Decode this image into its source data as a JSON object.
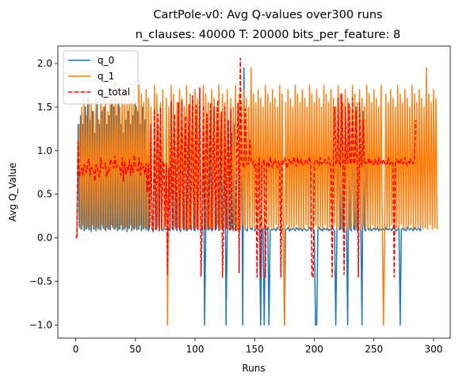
{
  "chart_data": {
    "type": "line",
    "title": "CartPole-v0: Avg Q-values over300 runs",
    "subtitle": "n_clauses: 40000 T: 20000 bits_per_feature: 8",
    "xlabel": "Runs",
    "ylabel": "Avg Q_Value",
    "xlim": [
      -15,
      314
    ],
    "ylim": [
      -1.15,
      2.2
    ],
    "xticks": [
      0,
      50,
      100,
      150,
      200,
      250,
      300
    ],
    "yticks": [
      -1.0,
      -0.5,
      0.0,
      0.5,
      1.0,
      1.5,
      2.0
    ],
    "ytick_labels": [
      "−1.0",
      "−0.5",
      "0.0",
      "0.5",
      "1.0",
      "1.5",
      "2.0"
    ],
    "grid": false,
    "legend_position": "top-left",
    "x": {
      "start": 0,
      "end": 299,
      "step": 1
    },
    "series": [
      {
        "name": "q_0",
        "color": "#1f77b4",
        "style": "solid",
        "values": [
          0.0,
          0.02,
          1.3,
          0.12,
          1.4,
          0.1,
          1.3,
          0.08,
          1.5,
          0.1,
          1.6,
          0.09,
          1.35,
          0.07,
          1.45,
          0.1,
          1.2,
          0.08,
          1.55,
          0.1,
          1.3,
          0.09,
          1.45,
          0.11,
          1.5,
          0.08,
          1.3,
          0.1,
          1.4,
          0.09,
          1.6,
          0.12,
          1.5,
          0.1,
          1.4,
          0.08,
          1.55,
          0.1,
          1.3,
          0.09,
          1.2,
          0.1,
          1.35,
          0.07,
          1.45,
          0.11,
          1.3,
          0.08,
          1.4,
          0.1,
          1.55,
          0.09,
          1.45,
          0.1,
          1.3,
          0.08,
          1.5,
          0.1,
          1.35,
          0.09,
          0.95,
          0.08,
          0.12,
          1.1,
          0.1,
          0.07,
          1.2,
          0.09,
          0.1,
          1.3,
          0.08,
          1.45,
          0.1,
          0.08,
          0.12,
          0.1,
          0.09,
          0.13,
          0.1,
          0.08,
          1.35,
          0.1,
          0.09,
          1.2,
          0.11,
          0.08,
          1.4,
          0.1,
          0.07,
          1.55,
          0.1,
          0.09,
          1.3,
          0.08,
          0.1,
          1.45,
          0.11,
          0.09,
          1.6,
          0.1,
          0.08,
          1.35,
          0.1,
          0.09,
          1.5,
          0.1,
          0.08,
          1.7,
          -1.0,
          0.1,
          1.3,
          0.09,
          0.1,
          1.45,
          0.08,
          0.1,
          1.55,
          0.09,
          0.11,
          1.3,
          0.08,
          0.1,
          1.4,
          0.1,
          0.09,
          1.5,
          -1.0,
          0.08,
          1.35,
          0.1,
          0.09,
          1.2,
          0.08,
          1.3,
          0.1,
          0.09,
          0.11,
          0.08,
          0.1,
          1.45,
          -1.0,
          1.95,
          0.1,
          0.09,
          0.08,
          1.4,
          0.1,
          0.11,
          0.09,
          1.55,
          0.08,
          0.1,
          0.12,
          0.09,
          0.1,
          -1.0,
          0.08,
          0.11,
          -1.0,
          0.1,
          0.09,
          0.12,
          -1.0,
          0.08,
          0.1,
          0.09,
          0.11,
          0.1,
          0.08,
          0.12,
          0.1,
          0.09,
          0.08,
          0.1,
          0.11,
          -1.0,
          0.09,
          0.1,
          0.12,
          0.08,
          0.1,
          0.09,
          0.11,
          0.1,
          0.08,
          0.12,
          0.1,
          0.09,
          0.11,
          0.1,
          0.08,
          0.12,
          0.1,
          0.09,
          0.08,
          0.1,
          0.12,
          0.09,
          0.11,
          0.1,
          0.08,
          -1.0,
          -1.0,
          0.1,
          0.12,
          0.09,
          0.1,
          0.08,
          0.11,
          0.1,
          0.09,
          0.12,
          0.08,
          0.1,
          0.09,
          0.11,
          0.1,
          0.08,
          -1.0,
          0.1,
          1.3,
          0.09,
          0.1,
          1.45,
          0.08,
          0.1,
          1.55,
          0.09,
          -1.0,
          1.3,
          0.1,
          0.08,
          1.4,
          0.1,
          0.09,
          1.5,
          0.08,
          0.1,
          1.35,
          0.09,
          -1.0,
          1.45,
          0.1,
          0.08,
          1.2,
          0.1,
          0.09,
          0.12,
          0.08,
          0.1,
          0.11,
          0.09,
          0.1,
          0.12,
          0.08,
          0.1,
          0.09,
          0.11,
          0.1,
          0.08,
          0.12,
          0.1,
          0.09,
          0.11,
          0.1,
          0.08,
          0.12,
          0.1,
          0.09,
          0.08,
          0.1,
          0.12,
          -1.0,
          0.1,
          0.11,
          0.09,
          0.1,
          0.08,
          0.12,
          0.1,
          0.09,
          0.11,
          0.1,
          0.08,
          0.12,
          0.1,
          0.09,
          0.11,
          0.1,
          0.08,
          1.35
        ]
      },
      {
        "name": "q_1",
        "color": "#ff7f0e",
        "style": "solid",
        "values": [
          0.0,
          0.02,
          0.9,
          1.3,
          0.1,
          1.5,
          0.15,
          1.6,
          0.1,
          1.4,
          0.12,
          1.7,
          0.1,
          1.55,
          0.15,
          1.45,
          0.1,
          1.6,
          0.12,
          1.35,
          0.1,
          1.75,
          0.15,
          1.5,
          0.1,
          1.65,
          0.12,
          1.45,
          0.1,
          1.7,
          0.15,
          1.55,
          0.1,
          1.8,
          0.12,
          1.6,
          0.1,
          1.5,
          0.15,
          1.75,
          0.1,
          1.65,
          0.12,
          1.55,
          0.1,
          1.7,
          0.15,
          1.6,
          0.1,
          1.8,
          0.12,
          1.5,
          0.1,
          1.75,
          0.15,
          1.65,
          0.1,
          1.55,
          0.12,
          1.7,
          0.1,
          1.6,
          0.15,
          1.5,
          0.1,
          0.12,
          1.75,
          0.1,
          1.65,
          0.15,
          0.1,
          1.55,
          0.12,
          1.7,
          0.1,
          0.15,
          1.6,
          -1.0,
          1.5,
          0.12,
          1.75,
          0.1,
          1.65,
          0.15,
          0.1,
          1.55,
          0.12,
          1.7,
          0.1,
          1.6,
          0.15,
          1.5,
          0.1,
          1.75,
          0.12,
          0.1,
          1.65,
          0.15,
          1.55,
          0.1,
          1.7,
          0.12,
          1.6,
          0.1,
          1.5,
          0.15,
          0.1,
          1.75,
          0.12,
          1.65,
          0.1,
          1.55,
          0.15,
          0.1,
          1.7,
          0.12,
          1.6,
          0.1,
          1.5,
          0.15,
          1.75,
          0.1,
          0.12,
          1.65,
          0.1,
          1.55,
          0.15,
          1.7,
          0.1,
          0.12,
          1.6,
          0.1,
          1.5,
          0.15,
          1.75,
          0.1,
          0.12,
          1.65,
          0.1,
          1.55,
          0.15,
          1.7,
          0.1,
          1.6,
          0.12,
          1.5,
          0.1,
          1.95,
          0.12,
          1.65,
          0.1,
          1.55,
          0.15,
          1.7,
          0.1,
          1.6,
          0.12,
          1.5,
          0.1,
          1.75,
          0.15,
          1.65,
          0.1,
          1.55,
          0.12,
          1.7,
          0.1,
          1.6,
          0.15,
          1.5,
          0.1,
          1.75,
          0.12,
          1.65,
          0.1,
          -1.0,
          1.55,
          0.15,
          1.7,
          0.1,
          1.6,
          0.12,
          1.5,
          0.1,
          1.75,
          0.15,
          1.65,
          0.1,
          1.55,
          0.12,
          1.7,
          0.1,
          1.6,
          0.15,
          1.5,
          0.1,
          1.75,
          0.12,
          1.65,
          0.1,
          1.55,
          0.15,
          1.7,
          0.1,
          1.6,
          0.12,
          1.5,
          0.1,
          1.75,
          0.15,
          1.65,
          0.1,
          1.55,
          0.12,
          1.7,
          0.1,
          1.6,
          0.15,
          1.5,
          0.1,
          1.75,
          0.12,
          1.65,
          0.1,
          1.55,
          0.15,
          1.7,
          0.1,
          1.6,
          0.12,
          1.5,
          0.1,
          1.75,
          0.15,
          1.65,
          0.1,
          1.55,
          0.12,
          1.7,
          0.1,
          1.6,
          0.15,
          1.5,
          0.1,
          1.75,
          0.12,
          1.65,
          0.1,
          1.55,
          0.15,
          1.7,
          0.1,
          1.6,
          0.12,
          1.5,
          0.1,
          1.75,
          0.15,
          -1.0,
          0.1,
          1.65,
          0.12,
          1.55,
          0.1,
          1.7,
          0.15,
          1.6,
          0.1,
          1.5,
          0.12,
          1.75,
          0.1,
          1.65,
          0.15,
          1.55,
          0.1,
          1.7,
          0.12,
          1.6,
          0.1,
          1.5,
          0.15,
          1.75,
          0.1,
          1.65,
          0.12,
          1.55,
          0.1,
          1.7,
          0.15,
          1.6,
          0.1,
          1.5,
          0.12,
          1.95,
          0.1,
          1.65,
          0.15,
          1.55,
          0.1,
          1.7,
          0.12,
          1.6,
          0.1
        ]
      },
      {
        "name": "q_total",
        "color": "#ff0000",
        "style": "dashed",
        "values": [
          0.0,
          0.01,
          1.1,
          0.7,
          0.75,
          0.8,
          0.72,
          0.84,
          0.8,
          0.75,
          0.86,
          0.9,
          0.72,
          0.81,
          0.8,
          0.77,
          0.65,
          0.84,
          0.83,
          0.72,
          0.7,
          0.92,
          0.8,
          0.8,
          0.8,
          0.86,
          0.71,
          0.77,
          0.75,
          0.9,
          0.87,
          0.83,
          0.8,
          0.94,
          0.81,
          0.84,
          0.82,
          0.8,
          0.72,
          0.92,
          0.65,
          0.87,
          0.73,
          0.81,
          0.77,
          0.9,
          0.72,
          0.84,
          0.75,
          0.95,
          0.83,
          0.79,
          0.77,
          0.92,
          0.72,
          0.86,
          0.8,
          0.82,
          0.73,
          0.85,
          0.52,
          0.84,
          0.13,
          1.3,
          0.1,
          0.09,
          1.48,
          0.1,
          0.88,
          1.42,
          0.08,
          1.5,
          0.11,
          0.87,
          0.87,
          0.13,
          0.85,
          -0.43,
          0.8,
          0.1,
          1.56,
          0.1,
          0.87,
          1.42,
          0.11,
          0.82,
          1.55,
          0.1,
          0.83,
          1.58,
          0.12,
          0.84,
          1.4,
          0.09,
          0.9,
          1.53,
          0.1,
          0.89,
          1.63,
          0.1,
          0.8,
          1.52,
          0.1,
          0.82,
          1.72,
          -0.44,
          0.12,
          1.52,
          0.09,
          0.92,
          1.42,
          0.13,
          0.85,
          1.55,
          0.1,
          0.83,
          1.5,
          0.09,
          0.82,
          1.58,
          0.12,
          0.84,
          1.45,
          -0.45,
          0.1,
          1.5,
          0.11,
          0.82,
          1.35,
          0.09,
          1.47,
          0.13,
          0.1,
          0.12,
          0.08,
          0.85,
          1.55,
          -0.4,
          2.06,
          0.9,
          0.85,
          0.8,
          1.48,
          0.85,
          0.85,
          0.85,
          1.12,
          0.88,
          0.85,
          0.88,
          0.8,
          0.85,
          -0.45,
          0.85,
          0.92,
          -0.46,
          0.85,
          0.87,
          0.9,
          -0.45,
          0.85,
          0.87,
          0.8,
          0.93,
          0.85,
          0.8,
          0.87,
          0.9,
          0.85,
          0.8,
          0.88,
          0.87,
          -0.45,
          0.88,
          0.85,
          0.92,
          0.87,
          0.8,
          0.85,
          0.9,
          0.85,
          0.87,
          0.85,
          0.93,
          0.85,
          0.82,
          0.92,
          0.85,
          0.85,
          0.9,
          0.85,
          0.83,
          0.85,
          0.9,
          0.87,
          0.85,
          0.93,
          0.85,
          -0.45,
          -0.45,
          0.85,
          0.88,
          0.9,
          0.85,
          0.83,
          0.92,
          0.85,
          0.86,
          0.85,
          0.9,
          0.87,
          0.85,
          0.92,
          0.85,
          0.83,
          -0.45,
          0.9,
          1.5,
          0.85,
          0.85,
          1.6,
          0.85,
          0.82,
          1.65,
          0.88,
          -0.42,
          1.5,
          0.85,
          0.86,
          1.55,
          0.85,
          0.85,
          1.6,
          0.85,
          0.86,
          1.45,
          0.85,
          -0.45,
          1.55,
          0.85,
          0.82,
          1.35,
          0.85,
          0.87,
          0.85,
          0.85,
          0.92,
          0.85,
          0.88,
          0.83,
          0.85,
          0.9,
          0.85,
          0.84,
          0.92,
          0.85,
          0.88,
          0.85,
          0.9,
          0.85,
          0.87,
          0.85,
          0.92,
          0.85,
          0.85,
          0.88,
          0.85,
          -0.45,
          0.85,
          0.9,
          0.85,
          0.88,
          0.85,
          0.9,
          0.85,
          0.86,
          0.92,
          0.85,
          0.83,
          0.88,
          0.85,
          0.9,
          0.87,
          0.85,
          0.9,
          1.35
        ]
      }
    ]
  }
}
